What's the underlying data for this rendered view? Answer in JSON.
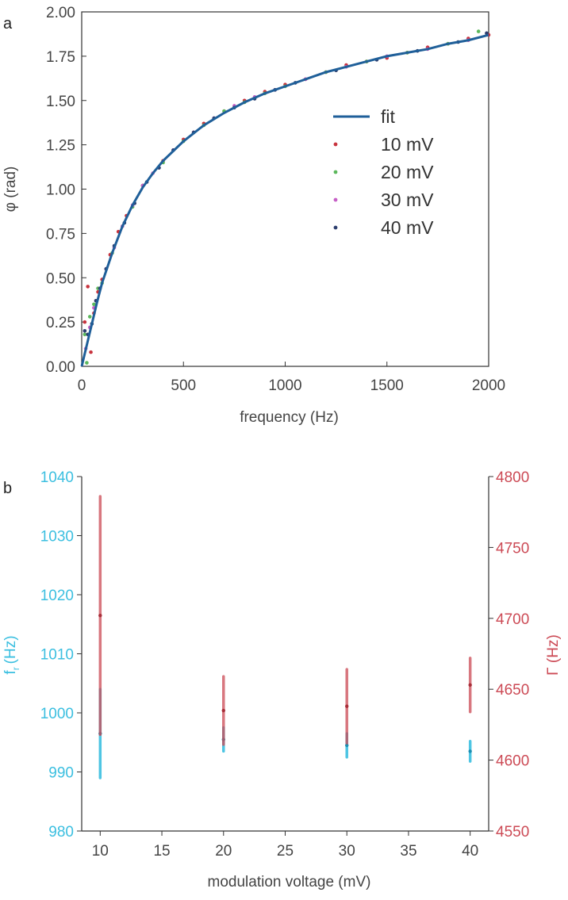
{
  "chart_data": [
    {
      "panel": "a",
      "type": "scatter",
      "xlabel": "frequency (Hz)",
      "ylabel": "φ (rad)",
      "xlim": [
        0,
        2000
      ],
      "ylim": [
        0,
        2
      ],
      "xticks": [
        "0",
        "500",
        "1000",
        "1500",
        "2000"
      ],
      "yticks": [
        "0.00",
        "0.25",
        "0.50",
        "0.75",
        "1.00",
        "1.25",
        "1.50",
        "1.75",
        "2.00"
      ],
      "legend_position": "center-right",
      "fit": {
        "name": "fit",
        "color": "#1f5f99",
        "x": [
          0,
          25,
          50,
          75,
          100,
          150,
          200,
          250,
          300,
          350,
          400,
          500,
          600,
          700,
          800,
          900,
          1000,
          1100,
          1200,
          1300,
          1400,
          1500,
          1600,
          1700,
          1800,
          1900,
          2000
        ],
        "y": [
          0.0,
          0.12,
          0.24,
          0.36,
          0.47,
          0.64,
          0.79,
          0.91,
          1.01,
          1.09,
          1.16,
          1.27,
          1.36,
          1.43,
          1.49,
          1.54,
          1.58,
          1.62,
          1.66,
          1.69,
          1.72,
          1.75,
          1.77,
          1.79,
          1.82,
          1.84,
          1.87
        ]
      },
      "series": [
        {
          "name": "10 mV",
          "color": "#c8343e",
          "x": [
            15,
            30,
            45,
            60,
            80,
            100,
            140,
            180,
            220,
            300,
            400,
            500,
            600,
            700,
            800,
            900,
            1000,
            1100,
            1200,
            1300,
            1400,
            1500,
            1600,
            1700,
            1800,
            1900,
            2000
          ],
          "y": [
            0.25,
            0.45,
            0.08,
            0.3,
            0.42,
            0.49,
            0.63,
            0.76,
            0.85,
            1.02,
            1.16,
            1.28,
            1.37,
            1.44,
            1.5,
            1.55,
            1.59,
            1.62,
            1.66,
            1.7,
            1.72,
            1.74,
            1.77,
            1.8,
            1.82,
            1.85,
            1.87
          ]
        },
        {
          "name": "20 mV",
          "color": "#5cb85c",
          "x": [
            15,
            25,
            40,
            60,
            80,
            100,
            150,
            200,
            250,
            300,
            400,
            500,
            600,
            700,
            800,
            900,
            1000,
            1200,
            1400,
            1600,
            1800,
            1950
          ],
          "y": [
            0.18,
            0.02,
            0.28,
            0.35,
            0.44,
            0.47,
            0.64,
            0.79,
            0.9,
            1.02,
            1.15,
            1.27,
            1.36,
            1.44,
            1.49,
            1.54,
            1.58,
            1.66,
            1.72,
            1.77,
            1.82,
            1.89
          ]
        },
        {
          "name": "30 mV",
          "color": "#c65fc6",
          "x": [
            20,
            40,
            60,
            90,
            120,
            160,
            200,
            250,
            300,
            350,
            450,
            550,
            650,
            750,
            850,
            950,
            1100,
            1300,
            1500,
            1700,
            1900
          ],
          "y": [
            0.1,
            0.22,
            0.33,
            0.44,
            0.55,
            0.67,
            0.79,
            0.91,
            1.02,
            1.09,
            1.22,
            1.32,
            1.4,
            1.47,
            1.52,
            1.56,
            1.62,
            1.69,
            1.75,
            1.79,
            1.84
          ]
        },
        {
          "name": "40 mV",
          "color": "#2c3e6e",
          "x": [
            15,
            30,
            50,
            70,
            90,
            120,
            160,
            210,
            260,
            320,
            380,
            450,
            550,
            650,
            750,
            850,
            950,
            1050,
            1250,
            1450,
            1650,
            1850,
            1990
          ],
          "y": [
            0.2,
            0.18,
            0.24,
            0.37,
            0.44,
            0.55,
            0.68,
            0.81,
            0.92,
            1.04,
            1.12,
            1.22,
            1.32,
            1.4,
            1.46,
            1.51,
            1.56,
            1.6,
            1.67,
            1.73,
            1.78,
            1.83,
            1.88
          ]
        }
      ]
    },
    {
      "panel": "b",
      "type": "scatter",
      "xlabel": "modulation voltage (mV)",
      "ylabel_left": "f",
      "ylabel_left_sub": "r",
      "ylabel_left_unit": "(Hz)",
      "ylabel_right": "Γ (Hz)",
      "xlim": [
        8.5,
        41.5
      ],
      "ylim_left": [
        980,
        1040
      ],
      "ylim_right": [
        4550,
        4800
      ],
      "xticks": [
        "10",
        "15",
        "20",
        "25",
        "30",
        "35",
        "40"
      ],
      "yticks_left": [
        "980",
        "990",
        "1000",
        "1010",
        "1020",
        "1030",
        "1040"
      ],
      "yticks_right": [
        "4550",
        "4600",
        "4650",
        "4700",
        "4750",
        "4800"
      ],
      "left_color": "#3bbfe0",
      "right_color": "#cc4a55",
      "series": [
        {
          "axis": "left",
          "x": [
            10,
            20,
            30,
            40
          ],
          "y": [
            996.5,
            995.5,
            994.5,
            993.5
          ],
          "yerr": [
            7.5,
            2.0,
            2.0,
            1.7
          ]
        },
        {
          "axis": "right",
          "x": [
            10,
            20,
            30,
            40
          ],
          "y": [
            4702,
            4635,
            4638,
            4653
          ],
          "yerr": [
            84,
            24,
            26,
            19
          ]
        }
      ]
    }
  ]
}
